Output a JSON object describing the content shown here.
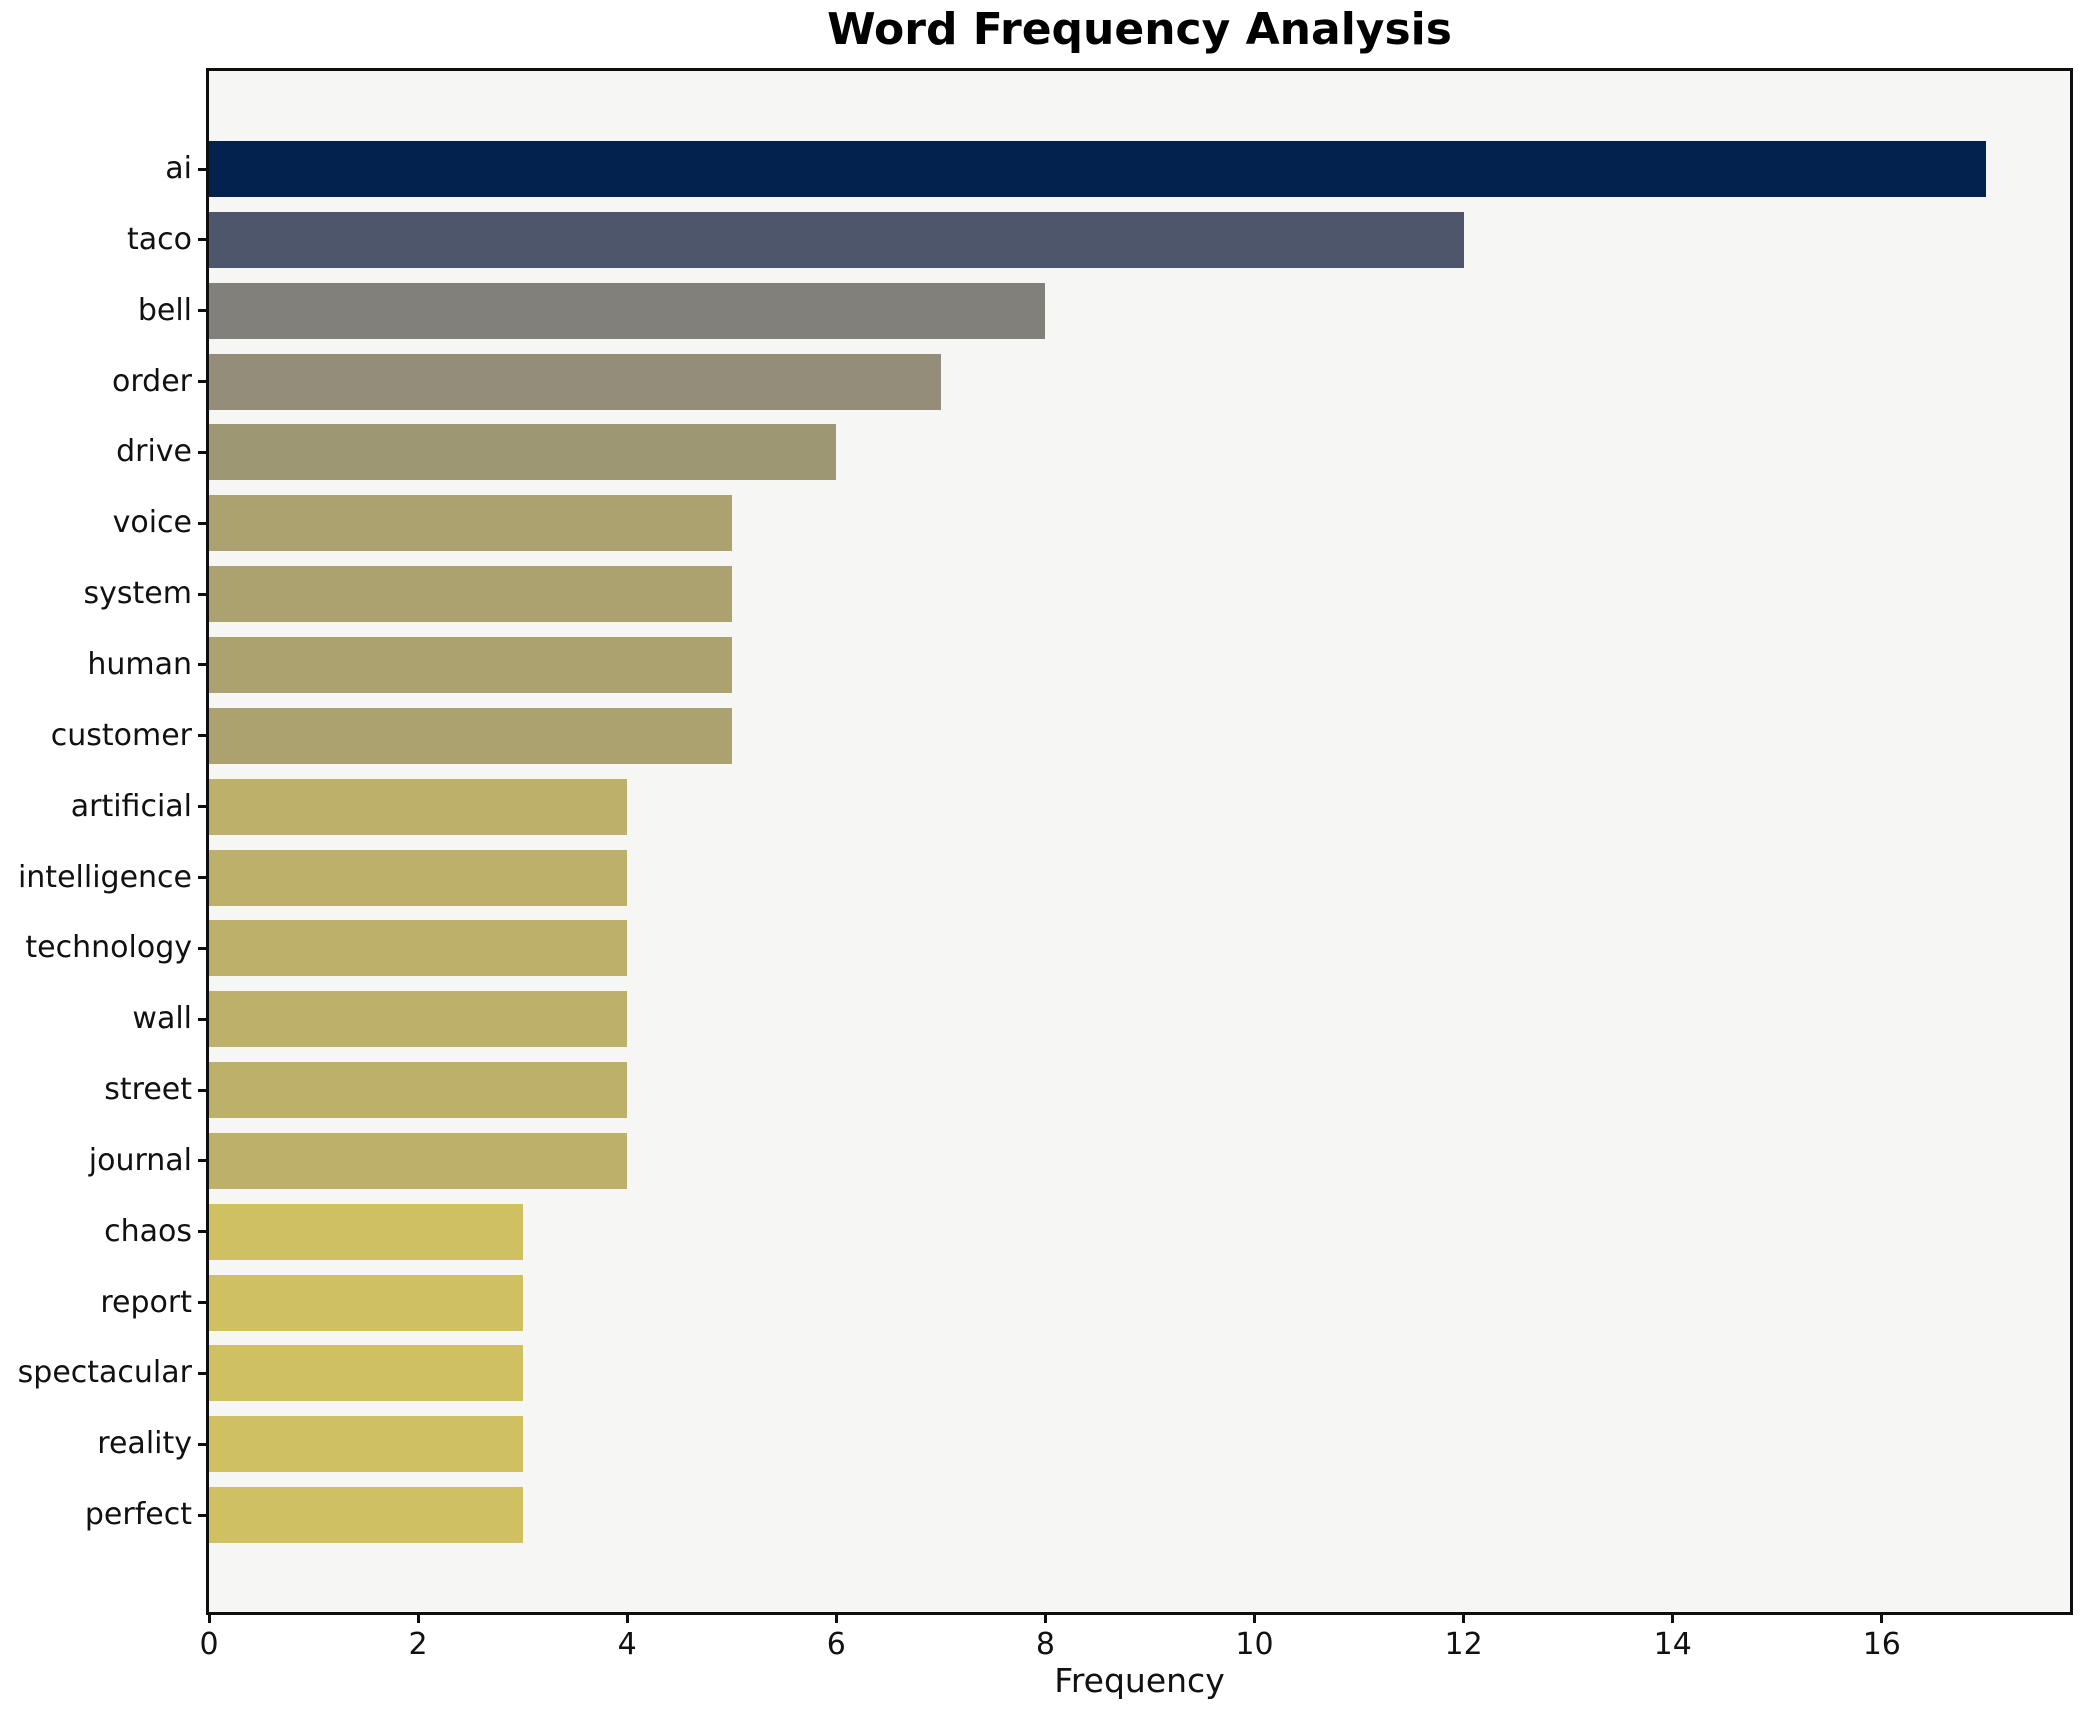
{
  "chart_data": {
    "type": "bar",
    "orientation": "horizontal",
    "title": "Word Frequency Analysis",
    "xlabel": "Frequency",
    "ylabel": "",
    "categories": [
      "ai",
      "taco",
      "bell",
      "order",
      "drive",
      "voice",
      "system",
      "human",
      "customer",
      "artificial",
      "intelligence",
      "technology",
      "wall",
      "street",
      "journal",
      "chaos",
      "report",
      "spectacular",
      "reality",
      "perfect"
    ],
    "values": [
      17,
      12,
      8,
      7,
      6,
      5,
      5,
      5,
      5,
      4,
      4,
      4,
      4,
      4,
      4,
      3,
      3,
      3,
      3,
      3
    ],
    "bar_colors": [
      "#03234e",
      "#4d566b",
      "#81807a",
      "#948d79",
      "#9e9773",
      "#aca26f",
      "#aca26f",
      "#aca26f",
      "#aca26f",
      "#bdb06a",
      "#bdb06a",
      "#bdb06a",
      "#bdb06a",
      "#bdb06a",
      "#bdb06a",
      "#cfc061",
      "#cfc061",
      "#cfc061",
      "#cfc061",
      "#cfc061"
    ],
    "x_ticks": [
      0,
      2,
      4,
      6,
      8,
      10,
      12,
      14,
      16
    ],
    "xlim": [
      0,
      17.8
    ],
    "grid": false,
    "legend": null,
    "colors": {
      "figure_background": "#ffffff",
      "plot_background": "#f6f6f4",
      "spine": "#0e0e0e",
      "text": "#111111"
    }
  }
}
